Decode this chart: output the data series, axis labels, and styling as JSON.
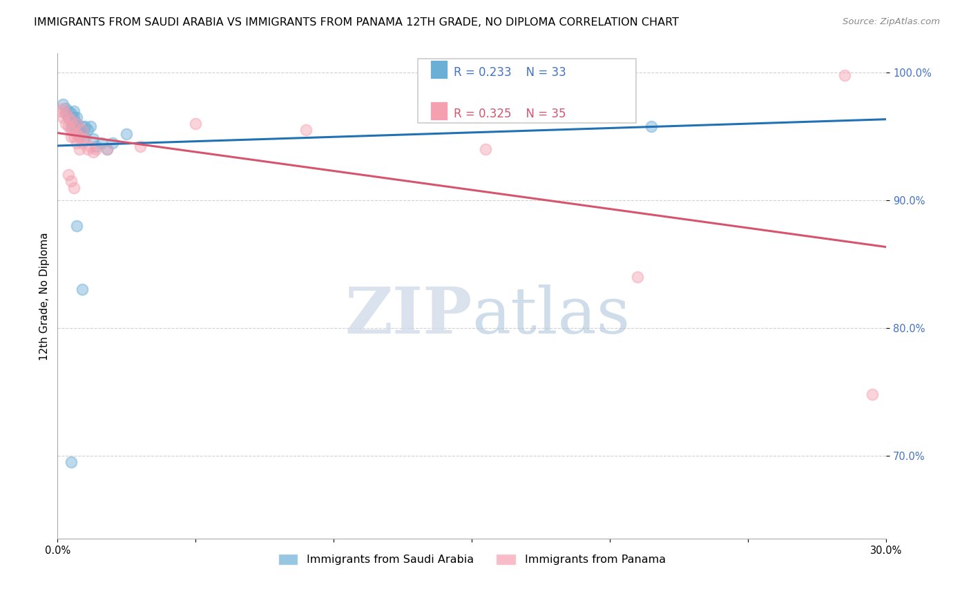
{
  "title": "IMMIGRANTS FROM SAUDI ARABIA VS IMMIGRANTS FROM PANAMA 12TH GRADE, NO DIPLOMA CORRELATION CHART",
  "source": "Source: ZipAtlas.com",
  "ylabel": "12th Grade, No Diploma",
  "legend_blue_r": 0.233,
  "legend_blue_n": 33,
  "legend_pink_r": 0.325,
  "legend_pink_n": 35,
  "blue_color": "#6baed6",
  "pink_color": "#f4a0b0",
  "blue_line_color": "#2171b5",
  "pink_line_color": "#d6546e",
  "background_color": "#ffffff",
  "blue_x": [
    0.002,
    0.003,
    0.003,
    0.004,
    0.004,
    0.005,
    0.005,
    0.005,
    0.006,
    0.006,
    0.006,
    0.006,
    0.007,
    0.007,
    0.007,
    0.008,
    0.008,
    0.009,
    0.009,
    0.01,
    0.01,
    0.011,
    0.012,
    0.013,
    0.014,
    0.016,
    0.018,
    0.02,
    0.025,
    0.007,
    0.009,
    0.215,
    0.005
  ],
  "blue_y": [
    0.975,
    0.972,
    0.968,
    0.97,
    0.965,
    0.968,
    0.963,
    0.958,
    0.97,
    0.965,
    0.962,
    0.958,
    0.965,
    0.96,
    0.955,
    0.955,
    0.95,
    0.958,
    0.952,
    0.958,
    0.95,
    0.955,
    0.958,
    0.948,
    0.942,
    0.945,
    0.94,
    0.945,
    0.952,
    0.88,
    0.83,
    0.958,
    0.695
  ],
  "pink_x": [
    0.001,
    0.002,
    0.002,
    0.003,
    0.003,
    0.004,
    0.004,
    0.005,
    0.005,
    0.005,
    0.006,
    0.006,
    0.007,
    0.007,
    0.007,
    0.008,
    0.008,
    0.009,
    0.009,
    0.01,
    0.011,
    0.012,
    0.013,
    0.014,
    0.004,
    0.005,
    0.006,
    0.018,
    0.03,
    0.05,
    0.09,
    0.155,
    0.21,
    0.285,
    0.295
  ],
  "pink_y": [
    0.97,
    0.972,
    0.965,
    0.968,
    0.96,
    0.965,
    0.958,
    0.963,
    0.955,
    0.95,
    0.958,
    0.95,
    0.96,
    0.952,
    0.945,
    0.95,
    0.94,
    0.955,
    0.945,
    0.948,
    0.94,
    0.942,
    0.938,
    0.94,
    0.92,
    0.915,
    0.91,
    0.94,
    0.942,
    0.96,
    0.955,
    0.94,
    0.84,
    0.998,
    0.748
  ],
  "xlim": [
    0.0,
    0.3
  ],
  "ylim": [
    0.635,
    1.015
  ],
  "yticks": [
    0.7,
    0.8,
    0.9,
    1.0
  ],
  "ytick_labels": [
    "70.0%",
    "80.0%",
    "90.0%",
    "100.0%"
  ],
  "xticks": [
    0.0,
    0.05,
    0.1,
    0.15,
    0.2,
    0.25,
    0.3
  ],
  "xtick_labels": [
    "0.0%",
    "",
    "",
    "",
    "",
    "",
    "30.0%"
  ],
  "marker_size": 130,
  "marker_alpha": 0.45,
  "title_fontsize": 11.5,
  "axis_label_fontsize": 11,
  "tick_fontsize": 10.5
}
